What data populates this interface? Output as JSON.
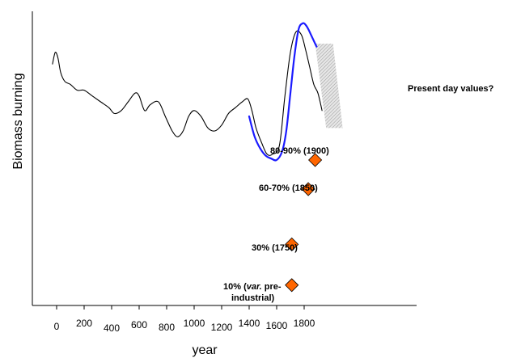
{
  "chart_data": {
    "type": "line",
    "xlabel": "year",
    "ylabel": "Biomass burning",
    "xlim": [
      -100,
      2000
    ],
    "ylim": [
      0,
      10
    ],
    "x_ticks": [
      {
        "value": 0,
        "label": "0"
      },
      {
        "value": 200,
        "label": "200"
      },
      {
        "value": 400,
        "label": "400"
      },
      {
        "value": 600,
        "label": "600"
      },
      {
        "value": 800,
        "label": "800"
      },
      {
        "value": 1000,
        "label": "1000"
      },
      {
        "value": 1200,
        "label": "1200"
      },
      {
        "value": 1400,
        "label": "1400"
      },
      {
        "value": 1600,
        "label": "1600"
      },
      {
        "value": 1800,
        "label": "1800"
      }
    ],
    "series": [
      {
        "color": "#000000",
        "x": [
          -30,
          -10,
          10,
          30,
          60,
          100,
          150,
          200,
          260,
          320,
          380,
          420,
          470,
          520,
          570,
          600,
          640,
          680,
          740,
          790,
          840,
          880,
          920,
          960,
          1000,
          1050,
          1100,
          1150,
          1200,
          1250,
          1300,
          1350,
          1390,
          1420,
          1450,
          1490,
          1530,
          1570,
          1620,
          1660,
          1700,
          1740,
          1780,
          1810,
          1840,
          1870,
          1900,
          1930
        ],
        "y": [
          8.3,
          8.7,
          8.5,
          8.0,
          7.7,
          7.6,
          7.4,
          7.4,
          7.2,
          7.0,
          6.8,
          6.6,
          6.7,
          7.0,
          7.3,
          7.2,
          6.7,
          6.9,
          7.0,
          6.5,
          6.0,
          5.8,
          6.0,
          6.5,
          6.7,
          6.5,
          6.1,
          6.0,
          6.2,
          6.6,
          6.8,
          7.0,
          7.1,
          6.7,
          6.1,
          5.6,
          5.2,
          5.2,
          5.5,
          7.2,
          8.7,
          9.4,
          9.3,
          8.8,
          8.2,
          7.6,
          7.3,
          6.7
        ]
      },
      {
        "color": "#1a1aff",
        "x": [
          1400,
          1440,
          1480,
          1520,
          1560,
          1600,
          1640,
          1670,
          1700,
          1730,
          1760,
          1790,
          1810,
          1830,
          1850,
          1870,
          1890
        ],
        "y": [
          6.5,
          5.8,
          5.4,
          5.15,
          5.05,
          5.0,
          5.3,
          6.0,
          7.3,
          8.6,
          9.5,
          9.7,
          9.65,
          9.5,
          9.3,
          9.1,
          8.9
        ]
      }
    ],
    "shaded_region": {
      "x_top": [
        1880,
        2010
      ],
      "x_bottom": [
        1960,
        2080
      ],
      "y": [
        6.1,
        9.0
      ],
      "color": "#d0d0d0"
    },
    "points": [
      {
        "x": 1880,
        "y": 5.0,
        "label": "80-90% (1900)",
        "color": "#ff6600"
      },
      {
        "x": 1830,
        "y": 4.0,
        "label": "60-70% (1850)",
        "color": "#ff6600"
      },
      {
        "x": 1710,
        "y": 2.1,
        "label": "30% (1750)",
        "color": "#ff6600"
      },
      {
        "x": 1710,
        "y": 0.7,
        "label_parts": [
          "10% (",
          "var.",
          " pre-",
          "industrial)"
        ],
        "color": "#ff6600"
      }
    ],
    "annotations": [
      {
        "text": "Present day values?"
      }
    ]
  }
}
